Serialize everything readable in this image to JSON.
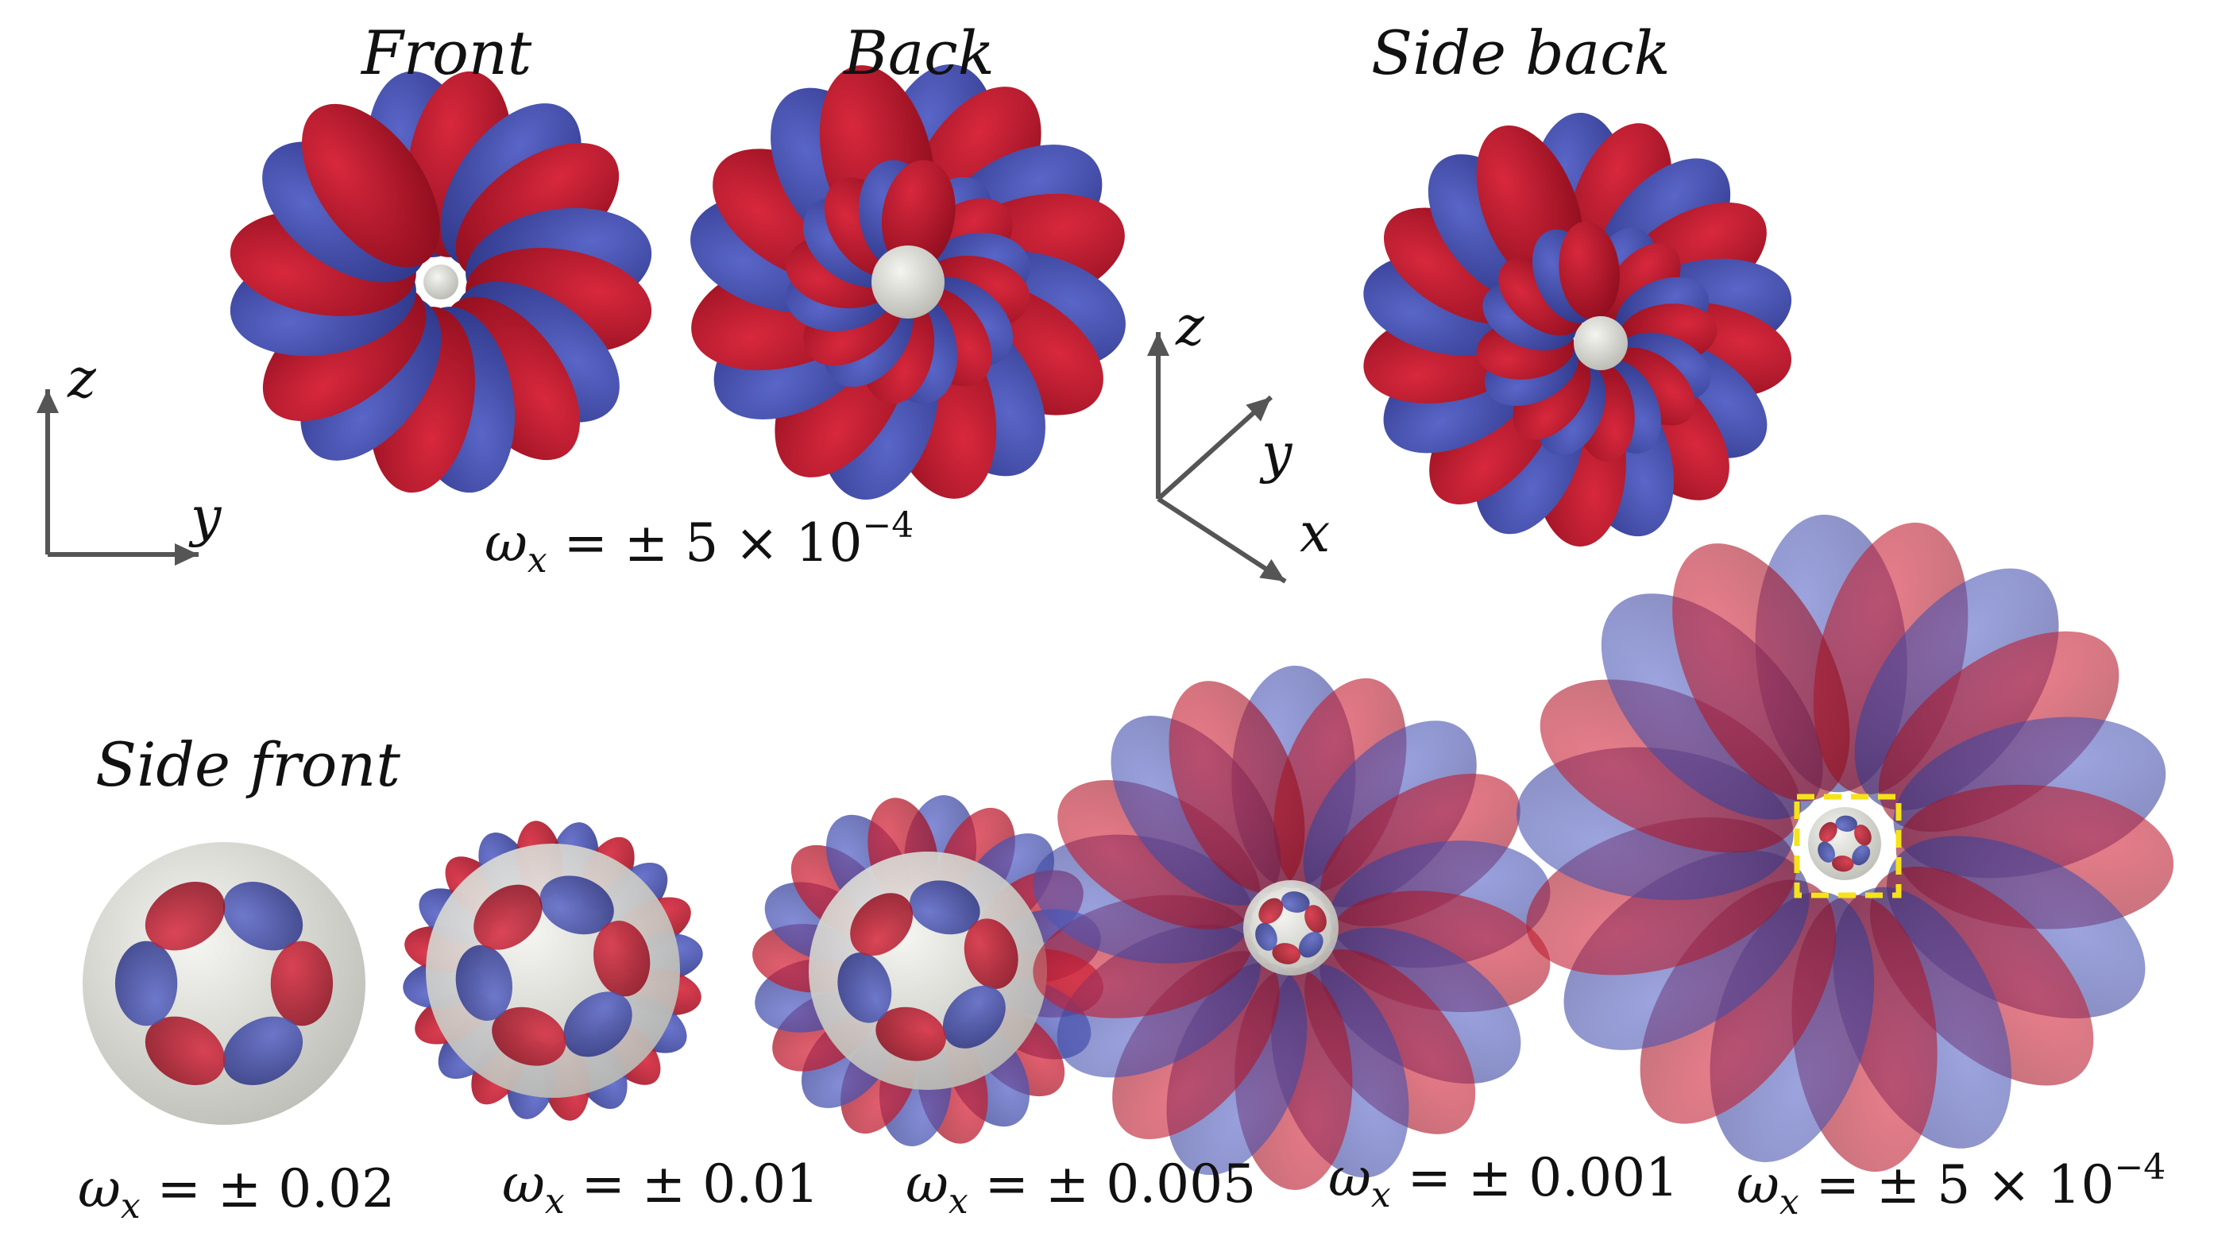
{
  "titles": {
    "front": "Front",
    "back": "Back",
    "side_back": "Side back",
    "side_front": "Side front"
  },
  "top_caption": {
    "symbol": "ω",
    "subscript": "x",
    "equals": " = ± 5 × 10",
    "exponent": "−4"
  },
  "bottom_captions": [
    {
      "symbol": "ω",
      "subscript": "x",
      "value": " = ± 0.02",
      "exponent": ""
    },
    {
      "symbol": "ω",
      "subscript": "x",
      "value": " = ± 0.01",
      "exponent": ""
    },
    {
      "symbol": "ω",
      "subscript": "x",
      "value": " = ± 0.005",
      "exponent": ""
    },
    {
      "symbol": "ω",
      "subscript": "x",
      "value": " = ± 0.001",
      "exponent": ""
    },
    {
      "symbol": "ω",
      "subscript": "x",
      "value": " = ± 5 × 10",
      "exponent": "−4"
    }
  ],
  "axes": {
    "left": {
      "vertical": "z",
      "horizontal": "y"
    },
    "oblique": {
      "vertical": "z",
      "diagonal_up": "y",
      "diagonal_down": "x"
    }
  },
  "colors": {
    "positive": "#b4162a",
    "negative": "#3a46a0",
    "sphere": "#dcdcd6",
    "axis": "#555555",
    "highlight_box": "#f5e21a"
  }
}
